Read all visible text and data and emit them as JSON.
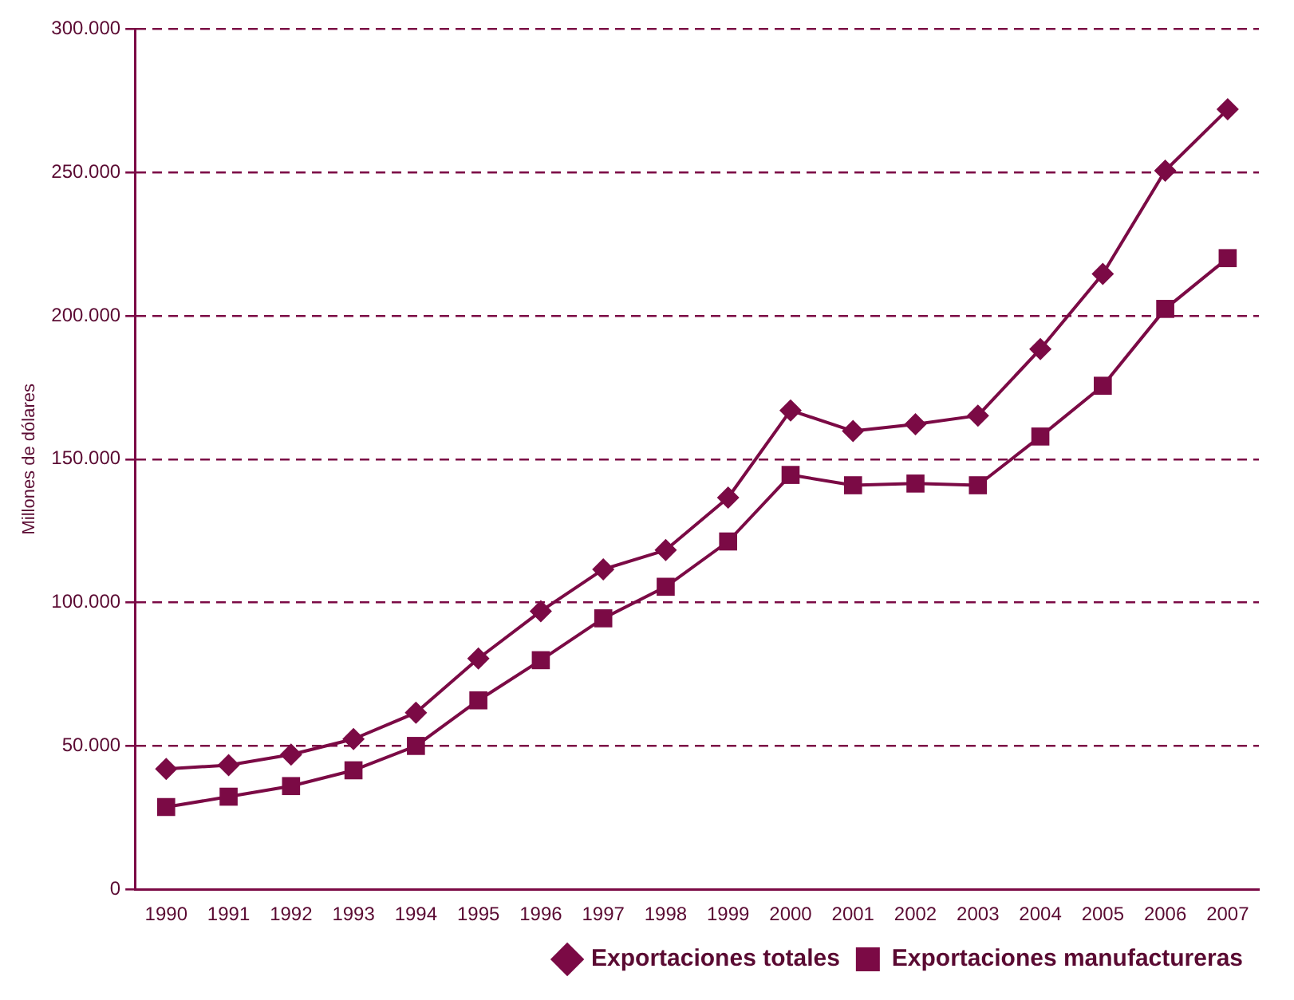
{
  "chart_data": {
    "type": "line",
    "ylabel": "Millones de dólares",
    "categories": [
      "1990",
      "1991",
      "1992",
      "1993",
      "1994",
      "1995",
      "1996",
      "1997",
      "1998",
      "1999",
      "2000",
      "2001",
      "2002",
      "2003",
      "2004",
      "2005",
      "2006",
      "2007"
    ],
    "series": [
      {
        "name": "Exportaciones totales",
        "color": "#7b0a45",
        "marker": "diamond",
        "values": [
          42000,
          43300,
          47000,
          52400,
          61600,
          80500,
          97000,
          111600,
          118300,
          136600,
          167000,
          159800,
          162200,
          165200,
          188400,
          214600,
          250600,
          272000
        ]
      },
      {
        "name": "Exportaciones manufactureras",
        "color": "#7b0a45",
        "marker": "square",
        "values": [
          28700,
          32300,
          36000,
          41500,
          50000,
          65900,
          79900,
          94500,
          105500,
          121300,
          144500,
          140900,
          141500,
          140900,
          157900,
          175600,
          202400,
          220100
        ]
      }
    ],
    "ylim": [
      0,
      300000
    ],
    "yticks": [
      0,
      {
        "value": 50000,
        "label": "50.000"
      },
      {
        "value": 100000,
        "label": "100.000"
      },
      {
        "value": 150000,
        "label": "150.000"
      },
      {
        "value": 200000,
        "label": "200.000"
      },
      {
        "value": 250000,
        "label": "250.000"
      },
      {
        "value": 300000,
        "label": "300.000"
      }
    ],
    "grid": "y",
    "legend": "bottom",
    "line_style": "solid"
  }
}
